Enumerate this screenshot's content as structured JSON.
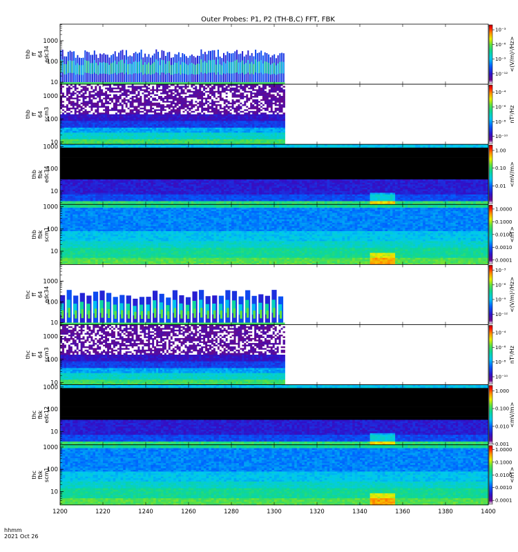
{
  "chart_data": {
    "type": "heatmap",
    "title": "Outer Probes: P1, P2 (TH-B,C) FFT, FBK",
    "time_label": "hhmm",
    "date_label": "2021 Oct 26",
    "xlim": [
      1200,
      1400
    ],
    "xticks": [
      "1200",
      "1220",
      "1240",
      "1260",
      "1280",
      "1300",
      "1320",
      "1340",
      "1360",
      "1380",
      "1400"
    ],
    "panels": [
      {
        "ylabel": [
          "thb",
          "ff",
          "64",
          "edc34"
        ],
        "units": "<(V/m)²/Hz>",
        "yticks": [
          "10",
          "100",
          "1000"
        ],
        "ylog_range": [
          0.9,
          3.8
        ],
        "cbar_ticks": [
          "10⁻¹²",
          "10⁻⁹",
          "10⁻⁶",
          "10⁻³"
        ],
        "cbar_range": [
          1e-14,
          0.01
        ],
        "style": "ffe",
        "data_end": 1305
      },
      {
        "ylabel": [
          "thb",
          "ff",
          "64",
          "scm3"
        ],
        "units": "nT²/Hz",
        "yticks": [
          "10",
          "100",
          "1000"
        ],
        "ylog_range": [
          0.9,
          3.5
        ],
        "cbar_ticks": [
          "10⁻¹⁰",
          "10⁻⁸",
          "10⁻⁶",
          "10⁻⁴"
        ],
        "cbar_range": [
          1e-11,
          0.001
        ],
        "style": "ffs",
        "data_end": 1305
      },
      {
        "ylabel": [
          "thb",
          "fbk",
          "edc34"
        ],
        "units": "<mV/m>",
        "yticks": [
          "10",
          "100",
          "1000"
        ],
        "ylog_range": [
          0.4,
          3.1
        ],
        "cbar_ticks": [
          "0.01",
          "0.10",
          "1.00"
        ],
        "cbar_range": [
          0.001,
          2
        ],
        "style": "fbe",
        "data_end": 1400
      },
      {
        "ylabel": [
          "thb",
          "fbk",
          "scm1"
        ],
        "units": "<nT>",
        "yticks": [
          "10",
          "100",
          "1000"
        ],
        "ylog_range": [
          0.4,
          3.1
        ],
        "cbar_ticks": [
          "0.0001",
          "0.0010",
          "0.0100",
          "0.1000",
          "1.0000"
        ],
        "cbar_range": [
          5e-05,
          2
        ],
        "style": "fbs",
        "data_end": 1400
      },
      {
        "ylabel": [
          "thc",
          "ff",
          "64",
          "edc34"
        ],
        "units": "<(V/m)²/Hz>",
        "yticks": [
          "10",
          "100",
          "1000"
        ],
        "ylog_range": [
          0.9,
          3.8
        ],
        "cbar_ticks": [
          "10⁻¹²",
          "10⁻⁹",
          "10⁻⁶",
          "10⁻³"
        ],
        "cbar_range": [
          1e-14,
          0.01
        ],
        "style": "ffe2",
        "data_end": 1305
      },
      {
        "ylabel": [
          "thc",
          "ff",
          "64",
          "scm3"
        ],
        "units": "nT²/Hz",
        "yticks": [
          "10",
          "100",
          "1000"
        ],
        "ylog_range": [
          0.9,
          3.5
        ],
        "cbar_ticks": [
          "10⁻¹⁰",
          "10⁻⁸",
          "10⁻⁶",
          "10⁻⁴"
        ],
        "cbar_range": [
          1e-11,
          0.001
        ],
        "style": "ffs",
        "data_end": 1305
      },
      {
        "ylabel": [
          "thc",
          "fbk",
          "edc12"
        ],
        "units": "<mV/m>",
        "yticks": [
          "10",
          "100",
          "1000"
        ],
        "ylog_range": [
          0.4,
          3.1
        ],
        "cbar_ticks": [
          "0.001",
          "0.010",
          "0.100",
          "1.000"
        ],
        "cbar_range": [
          0.001,
          2
        ],
        "style": "fbe",
        "data_end": 1400
      },
      {
        "ylabel": [
          "thc",
          "fbk",
          "scm1"
        ],
        "units": "<nT>",
        "yticks": [
          "10",
          "100",
          "1000"
        ],
        "ylog_range": [
          0.4,
          3.1
        ],
        "cbar_ticks": [
          "0.0001",
          "0.0010",
          "0.0100",
          "0.1000",
          "1.0000"
        ],
        "cbar_range": [
          5e-05,
          2
        ],
        "style": "fbs",
        "data_end": 1400
      }
    ]
  }
}
